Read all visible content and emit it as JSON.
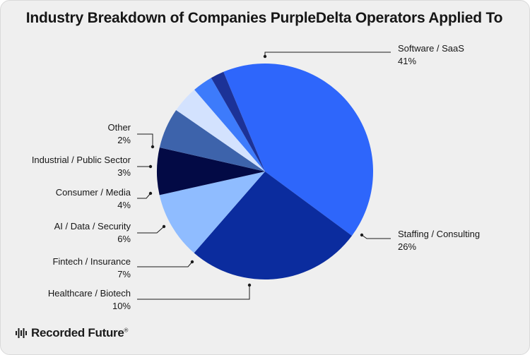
{
  "colors": {
    "background": "#efefef",
    "text": "#161616",
    "leader": "#1b1b1b"
  },
  "chart_data": {
    "type": "pie",
    "title": "Industry Breakdown of Companies PurpleDelta Operators Applied To",
    "slices": [
      {
        "label": "Software / SaaS",
        "value": 41,
        "value_label": "41%",
        "color": "#2e66fb"
      },
      {
        "label": "Staffing / Consulting",
        "value": 26,
        "value_label": "26%",
        "color": "#0b2c9e"
      },
      {
        "label": "Healthcare / Biotech",
        "value": 10,
        "value_label": "10%",
        "color": "#8fbcff"
      },
      {
        "label": "Fintech / Insurance",
        "value": 7,
        "value_label": "7%",
        "color": "#030a45"
      },
      {
        "label": "AI / Data / Security",
        "value": 6,
        "value_label": "6%",
        "color": "#3d63ab"
      },
      {
        "label": "Consumer / Media",
        "value": 4,
        "value_label": "4%",
        "color": "#d3e2fe"
      },
      {
        "label": "Industrial / Public Sector",
        "value": 3,
        "value_label": "3%",
        "color": "#3d7bfb"
      },
      {
        "label": "Other",
        "value": 2,
        "value_label": "2%",
        "color": "#1c3297"
      }
    ]
  },
  "brand": {
    "name": "Recorded Future",
    "mark": "®"
  }
}
